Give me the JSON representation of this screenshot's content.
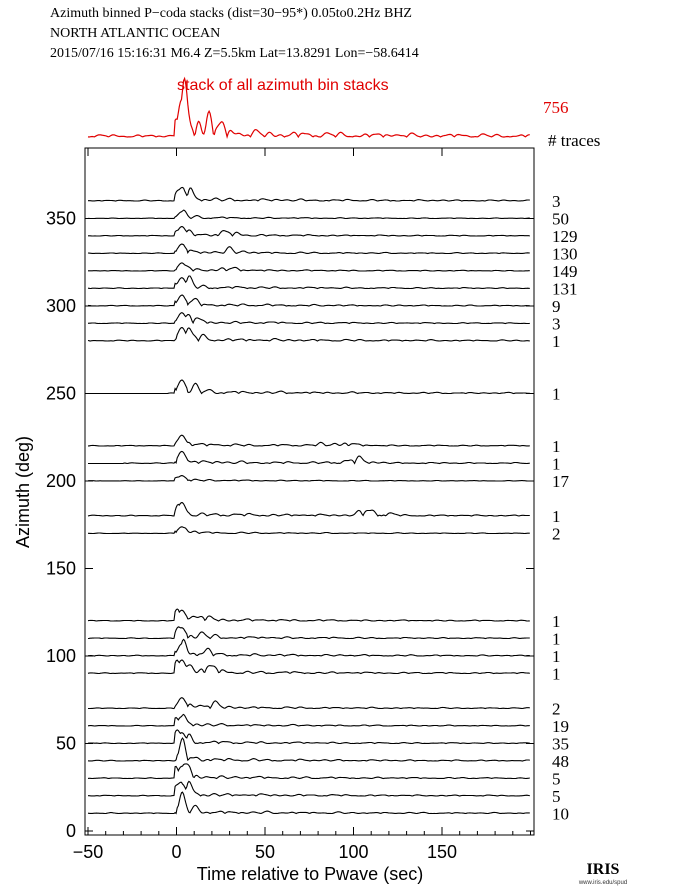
{
  "header": {
    "line1": "Azimuth binned P−coda stacks (dist=30−95*)  0.05to0.2Hz  BHZ",
    "line2": "NORTH ATLANTIC OCEAN",
    "line3": "2015/07/16  15:16:31  M6.4  Z=5.5km Lat=13.8291 Lon=−58.6414"
  },
  "stack": {
    "label": "stack of all azimuth bin stacks",
    "count": "756",
    "color": "#e00000"
  },
  "traces_header": "# traces",
  "logo": {
    "text": "IRIS",
    "subtext": "www.iris.edu/spud"
  },
  "chart_data": {
    "type": "line",
    "xlabel": "Time relative to Pwave (sec)",
    "ylabel": "Azimuth (deg)",
    "xlim": [
      -50,
      200
    ],
    "ylim": [
      0,
      385
    ],
    "x_ticks": [
      -50,
      0,
      50,
      100,
      150
    ],
    "x_tick_labels": [
      "−50",
      "0",
      "50",
      "100",
      "150"
    ],
    "y_ticks": [
      0,
      50,
      100,
      150,
      200,
      250,
      300,
      350
    ],
    "y_tick_labels": [
      "0",
      "50",
      "100",
      "150",
      "200",
      "250",
      "300",
      "350"
    ],
    "grid": false,
    "series": [
      {
        "azimuth": 360,
        "count": "3",
        "start": -50,
        "peak": 2,
        "amp": 1.0
      },
      {
        "azimuth": 350,
        "count": "50",
        "start": -50,
        "peak": 5,
        "amp": 0.5
      },
      {
        "azimuth": 340,
        "count": "129",
        "start": -50,
        "peak": 28,
        "amp": 0.7
      },
      {
        "azimuth": 330,
        "count": "130",
        "start": -50,
        "peak": 30,
        "amp": 0.7
      },
      {
        "azimuth": 320,
        "count": "149",
        "start": -50,
        "peak": 27,
        "amp": 0.6
      },
      {
        "azimuth": 310,
        "count": "131",
        "start": -50,
        "peak": 5,
        "amp": 0.8
      },
      {
        "azimuth": 300,
        "count": "9",
        "start": -50,
        "peak": 5,
        "amp": 0.8
      },
      {
        "azimuth": 290,
        "count": "3",
        "start": -50,
        "peak": 5,
        "amp": 0.8
      },
      {
        "azimuth": 280,
        "count": "1",
        "start": -50,
        "peak": 5,
        "amp": 1.0
      },
      {
        "azimuth": 250,
        "count": "1",
        "start": -5,
        "peak": 5,
        "amp": 1.0
      },
      {
        "azimuth": 220,
        "count": "1",
        "start": -50,
        "peak": 90,
        "amp": 0.8
      },
      {
        "azimuth": 210,
        "count": "1",
        "start": -30,
        "peak": 100,
        "amp": 0.9
      },
      {
        "azimuth": 200,
        "count": "17",
        "start": -50,
        "peak": 5,
        "amp": 0.4
      },
      {
        "azimuth": 180,
        "count": "1",
        "start": -50,
        "peak": 110,
        "amp": 1.0
      },
      {
        "azimuth": 170,
        "count": "2",
        "start": -50,
        "peak": 5,
        "amp": 0.5
      },
      {
        "azimuth": 120,
        "count": "1",
        "start": -50,
        "peak": 12,
        "amp": 0.8
      },
      {
        "azimuth": 110,
        "count": "1",
        "start": -50,
        "peak": 12,
        "amp": 0.8
      },
      {
        "azimuth": 100,
        "count": "1",
        "start": -50,
        "peak": 12,
        "amp": 0.9
      },
      {
        "azimuth": 90,
        "count": "1",
        "start": -50,
        "peak": 15,
        "amp": 1.0
      },
      {
        "azimuth": 70,
        "count": "2",
        "start": -50,
        "peak": 18,
        "amp": 0.8
      },
      {
        "azimuth": 60,
        "count": "19",
        "start": -50,
        "peak": 5,
        "amp": 0.7
      },
      {
        "azimuth": 50,
        "count": "35",
        "start": -50,
        "peak": 5,
        "amp": 0.8
      },
      {
        "azimuth": 40,
        "count": "48",
        "start": -50,
        "peak": 5,
        "amp": 0.9
      },
      {
        "azimuth": 30,
        "count": "5",
        "start": -50,
        "peak": 5,
        "amp": 0.9
      },
      {
        "azimuth": 20,
        "count": "5",
        "start": -50,
        "peak": 5,
        "amp": 0.9
      },
      {
        "azimuth": 10,
        "count": "10",
        "start": -50,
        "peak": 5,
        "amp": 0.9
      }
    ]
  }
}
